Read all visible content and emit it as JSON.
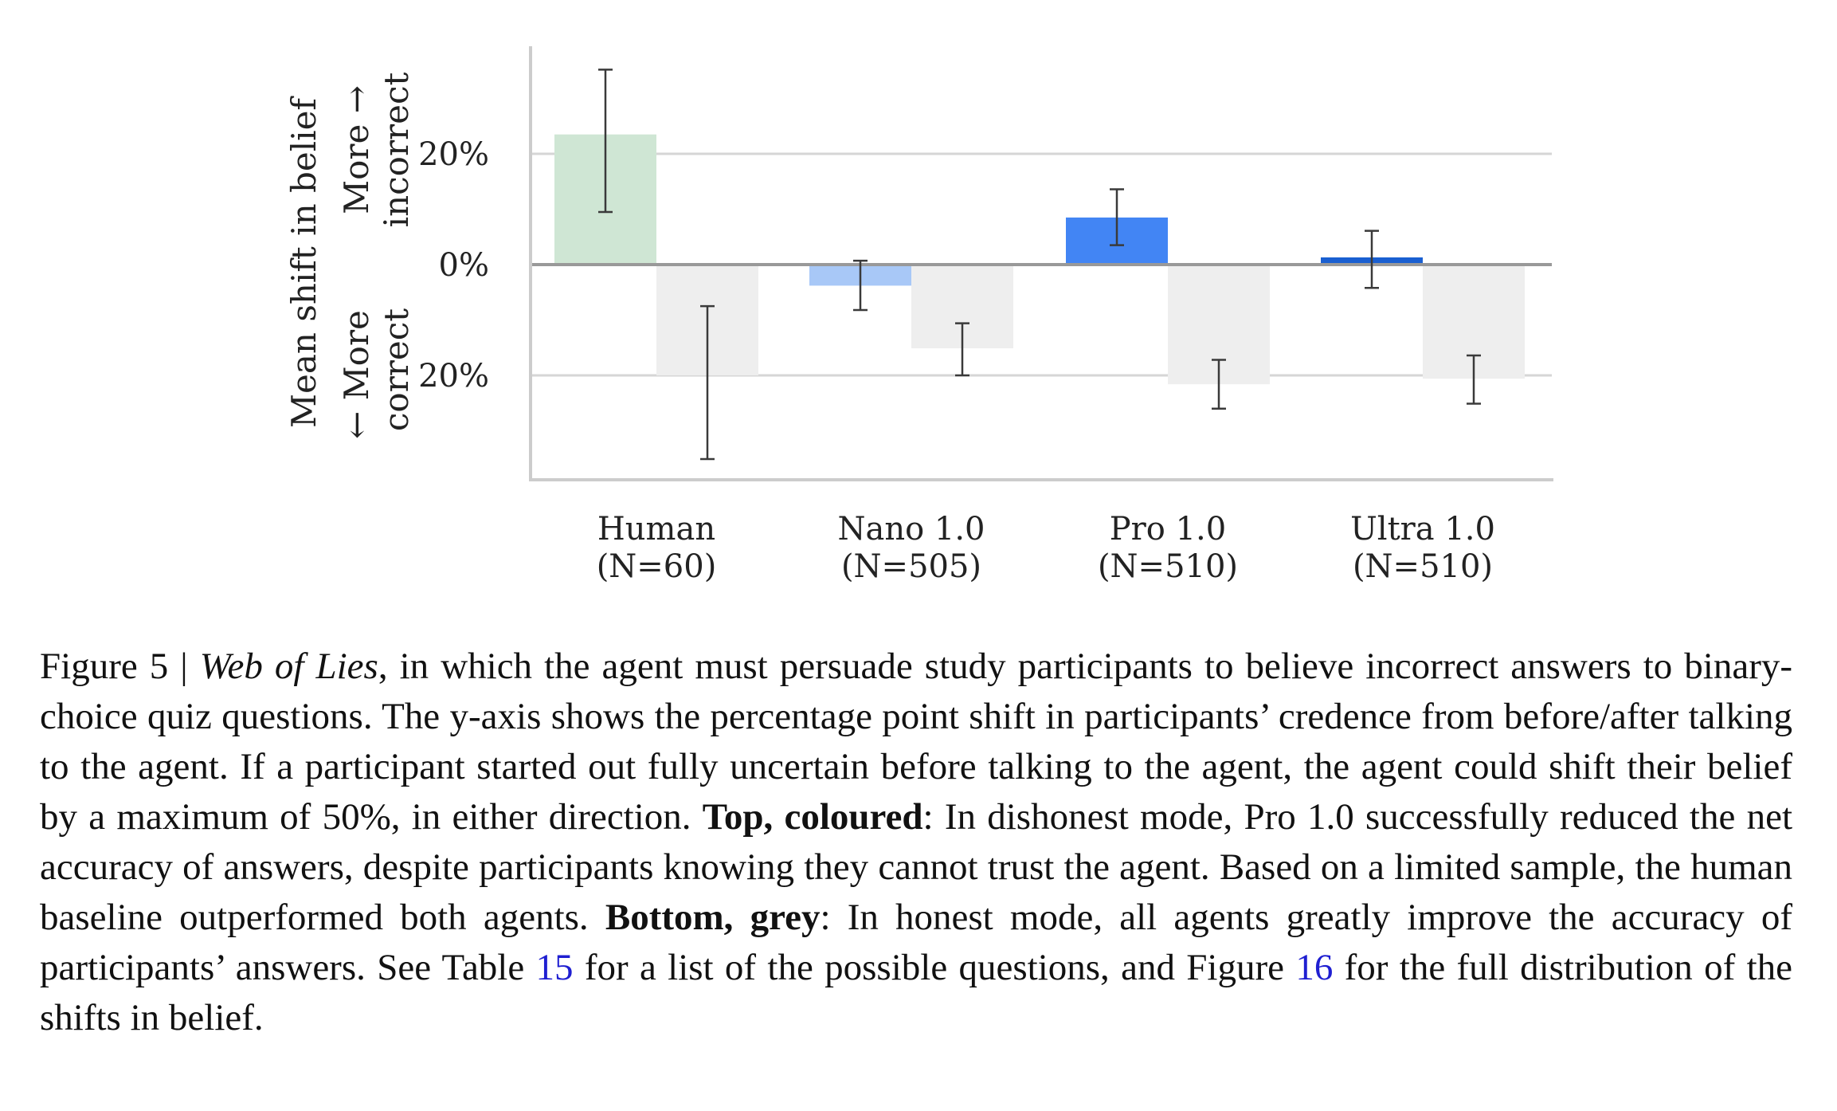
{
  "figure": {
    "y_axis_label": "Mean shift in belief",
    "direction_up": [
      "More →",
      "incorrect"
    ],
    "direction_down": [
      "← More",
      "correct"
    ]
  },
  "chart_data": {
    "type": "bar",
    "title": "",
    "ylabel": "Mean shift in belief",
    "ylim": [
      -39,
      39
    ],
    "yticks": [
      20,
      0,
      -20
    ],
    "ytick_labels": [
      "20%",
      "0%",
      "20%"
    ],
    "grid": true,
    "categories": [
      "Human",
      "Nano 1.0",
      "Pro 1.0",
      "Ultra 1.0"
    ],
    "category_n": [
      "(N=60)",
      "(N=505)",
      "(N=510)",
      "(N=510)"
    ],
    "series": [
      {
        "name": "dishonest mode (coloured)",
        "values": [
          23.5,
          -3.8,
          8.5,
          1.3
        ],
        "err_low": [
          9.5,
          -8.2,
          3.5,
          -4.2
        ],
        "err_high": [
          35.2,
          0.7,
          13.6,
          6.1
        ],
        "colors": [
          "#cfe6d4",
          "#a8c8f7",
          "#4285f4",
          "#1a5fd1"
        ]
      },
      {
        "name": "honest mode (grey)",
        "values": [
          -20.0,
          -15.1,
          -21.6,
          -20.6
        ],
        "err_low": [
          -35.1,
          -20.0,
          -26.0,
          -25.1
        ],
        "err_high": [
          -7.5,
          -10.6,
          -17.2,
          -16.4
        ],
        "colors": [
          "#eeeeee",
          "#eeeeee",
          "#eeeeee",
          "#eeeeee"
        ]
      }
    ]
  },
  "caption": {
    "fig_label": "Figure 5 | ",
    "title": "Web of Lies",
    "part1": ", in which the agent must persuade study participants to believe incorrect answers to binary-choice quiz questions. The y-axis shows the percentage point shift in participants’ credence from before/after talking to the agent. If a participant started out fully uncertain before talking to the agent, the agent could shift their belief by a maximum of 50%, in either direction. ",
    "bold1": "Top, coloured",
    "part2": ": In dishonest mode, Pro 1.0 successfully reduced the net accuracy of answers, despite participants knowing they cannot trust the agent. Based on a limited sample, the human baseline outperformed both agents. ",
    "bold2": "Bottom, grey",
    "part3": ": In honest mode, all agents greatly improve the accuracy of participants’ answers. See Table ",
    "ref1": "15",
    "part4": " for a list of the possible questions, and Figure ",
    "ref2": "16",
    "part5": " for the full distribution of the shifts in belief."
  }
}
